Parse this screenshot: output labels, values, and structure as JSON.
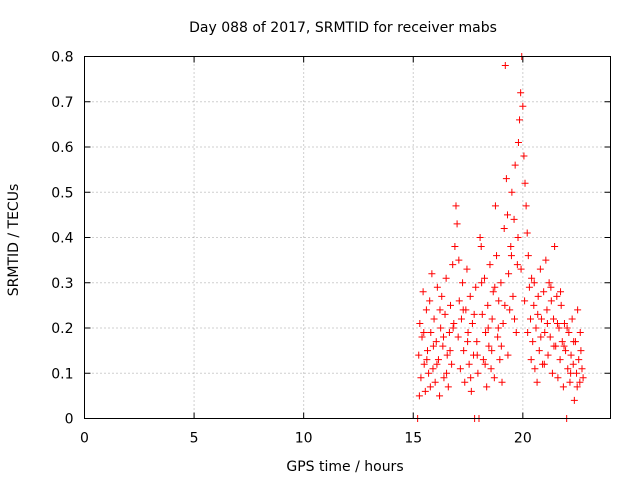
{
  "chart_data": {
    "type": "scatter",
    "title": "Day 088 of 2017, SRMTID for receiver mabs",
    "xlabel": "GPS time / hours",
    "ylabel": "SRMTID / TECUs",
    "xlim": [
      0,
      24
    ],
    "ylim": [
      0,
      0.8
    ],
    "x_ticks": [
      0,
      5,
      10,
      15,
      20
    ],
    "x_tick_labels": [
      "0",
      "5",
      "10",
      "15",
      "20"
    ],
    "y_ticks": [
      0,
      0.1,
      0.2,
      0.3,
      0.4,
      0.5,
      0.6,
      0.7,
      0.8
    ],
    "y_tick_labels": [
      "0",
      "0.1",
      "0.2",
      "0.3",
      "0.4",
      "0.5",
      "0.6",
      "0.7",
      "0.8"
    ],
    "grid": true,
    "marker": "+",
    "marker_color": "#ff0000",
    "series": [
      {
        "name": "SRMTID",
        "points": [
          [
            15.2,
            0.0
          ],
          [
            15.25,
            0.14
          ],
          [
            15.3,
            0.21
          ],
          [
            15.35,
            0.09
          ],
          [
            15.4,
            0.18
          ],
          [
            15.45,
            0.28
          ],
          [
            15.5,
            0.12
          ],
          [
            15.55,
            0.06
          ],
          [
            15.6,
            0.24
          ],
          [
            15.65,
            0.15
          ],
          [
            15.7,
            0.1
          ],
          [
            15.75,
            0.26
          ],
          [
            15.8,
            0.19
          ],
          [
            15.85,
            0.32
          ],
          [
            15.9,
            0.11
          ],
          [
            15.95,
            0.22
          ],
          [
            16.0,
            0.08
          ],
          [
            16.05,
            0.17
          ],
          [
            16.1,
            0.29
          ],
          [
            16.15,
            0.13
          ],
          [
            16.2,
            0.05
          ],
          [
            16.25,
            0.2
          ],
          [
            16.3,
            0.27
          ],
          [
            16.35,
            0.16
          ],
          [
            16.4,
            0.09
          ],
          [
            16.45,
            0.23
          ],
          [
            16.5,
            0.31
          ],
          [
            16.55,
            0.14
          ],
          [
            16.6,
            0.07
          ],
          [
            16.65,
            0.19
          ],
          [
            16.7,
            0.25
          ],
          [
            16.75,
            0.12
          ],
          [
            16.8,
            0.34
          ],
          [
            16.85,
            0.21
          ],
          [
            16.9,
            0.38
          ],
          [
            16.95,
            0.47
          ],
          [
            17.0,
            0.43
          ],
          [
            17.05,
            0.18
          ],
          [
            17.1,
            0.26
          ],
          [
            17.15,
            0.11
          ],
          [
            17.2,
            0.22
          ],
          [
            17.25,
            0.3
          ],
          [
            17.3,
            0.15
          ],
          [
            17.35,
            0.08
          ],
          [
            17.4,
            0.24
          ],
          [
            17.45,
            0.33
          ],
          [
            17.5,
            0.19
          ],
          [
            17.55,
            0.12
          ],
          [
            17.6,
            0.27
          ],
          [
            17.65,
            0.06
          ],
          [
            17.7,
            0.21
          ],
          [
            17.75,
            0.14
          ],
          [
            17.8,
            0.0
          ],
          [
            17.85,
            0.29
          ],
          [
            17.9,
            0.17
          ],
          [
            17.95,
            0.1
          ],
          [
            18.0,
            0.0
          ],
          [
            18.05,
            0.4
          ],
          [
            18.1,
            0.38
          ],
          [
            18.15,
            0.23
          ],
          [
            18.2,
            0.13
          ],
          [
            18.25,
            0.31
          ],
          [
            18.3,
            0.19
          ],
          [
            18.35,
            0.07
          ],
          [
            18.4,
            0.25
          ],
          [
            18.45,
            0.16
          ],
          [
            18.5,
            0.34
          ],
          [
            18.55,
            0.11
          ],
          [
            18.6,
            0.22
          ],
          [
            18.65,
            0.28
          ],
          [
            18.7,
            0.09
          ],
          [
            18.75,
            0.47
          ],
          [
            18.8,
            0.36
          ],
          [
            18.85,
            0.18
          ],
          [
            18.9,
            0.26
          ],
          [
            18.95,
            0.13
          ],
          [
            19.0,
            0.3
          ],
          [
            19.05,
            0.08
          ],
          [
            19.1,
            0.21
          ],
          [
            19.15,
            0.42
          ],
          [
            19.2,
            0.78
          ],
          [
            19.25,
            0.53
          ],
          [
            19.3,
            0.45
          ],
          [
            19.35,
            0.32
          ],
          [
            19.4,
            0.24
          ],
          [
            19.45,
            0.38
          ],
          [
            19.5,
            0.5
          ],
          [
            19.55,
            0.27
          ],
          [
            19.6,
            0.44
          ],
          [
            19.65,
            0.56
          ],
          [
            19.7,
            0.19
          ],
          [
            19.75,
            0.34
          ],
          [
            19.8,
            0.61
          ],
          [
            19.85,
            0.66
          ],
          [
            19.9,
            0.72
          ],
          [
            19.95,
            0.8
          ],
          [
            20.0,
            0.69
          ],
          [
            20.05,
            0.58
          ],
          [
            20.1,
            0.52
          ],
          [
            20.15,
            0.47
          ],
          [
            20.2,
            0.41
          ],
          [
            20.25,
            0.36
          ],
          [
            20.3,
            0.29
          ],
          [
            20.35,
            0.22
          ],
          [
            20.4,
            0.31
          ],
          [
            20.45,
            0.17
          ],
          [
            20.5,
            0.25
          ],
          [
            20.55,
            0.11
          ],
          [
            20.6,
            0.2
          ],
          [
            20.65,
            0.08
          ],
          [
            20.7,
            0.27
          ],
          [
            20.75,
            0.15
          ],
          [
            20.8,
            0.33
          ],
          [
            20.85,
            0.22
          ],
          [
            20.9,
            0.12
          ],
          [
            20.95,
            0.28
          ],
          [
            21.0,
            0.19
          ],
          [
            21.05,
            0.35
          ],
          [
            21.1,
            0.24
          ],
          [
            21.15,
            0.14
          ],
          [
            21.2,
            0.3
          ],
          [
            21.25,
            0.18
          ],
          [
            21.3,
            0.26
          ],
          [
            21.35,
            0.1
          ],
          [
            21.4,
            0.22
          ],
          [
            21.45,
            0.38
          ],
          [
            21.5,
            0.16
          ],
          [
            21.55,
            0.27
          ],
          [
            21.6,
            0.09
          ],
          [
            21.65,
            0.2
          ],
          [
            21.7,
            0.13
          ],
          [
            21.75,
            0.25
          ],
          [
            21.8,
            0.17
          ],
          [
            21.85,
            0.07
          ],
          [
            21.9,
            0.21
          ],
          [
            21.95,
            0.15
          ],
          [
            22.0,
            0.0
          ],
          [
            22.05,
            0.11
          ],
          [
            22.1,
            0.19
          ],
          [
            22.15,
            0.08
          ],
          [
            22.2,
            0.14
          ],
          [
            22.25,
            0.22
          ],
          [
            22.3,
            0.12
          ],
          [
            22.35,
            0.04
          ],
          [
            22.4,
            0.17
          ],
          [
            22.45,
            0.1
          ],
          [
            22.5,
            0.24
          ],
          [
            22.55,
            0.13
          ],
          [
            22.6,
            0.08
          ],
          [
            22.65,
            0.15
          ],
          [
            15.28,
            0.05
          ],
          [
            15.48,
            0.19
          ],
          [
            15.62,
            0.13
          ],
          [
            15.78,
            0.07
          ],
          [
            15.92,
            0.16
          ],
          [
            16.08,
            0.12
          ],
          [
            16.22,
            0.24
          ],
          [
            16.38,
            0.18
          ],
          [
            16.52,
            0.1
          ],
          [
            16.68,
            0.15
          ],
          [
            16.82,
            0.2
          ],
          [
            17.08,
            0.35
          ],
          [
            17.28,
            0.24
          ],
          [
            17.48,
            0.17
          ],
          [
            17.62,
            0.09
          ],
          [
            17.78,
            0.23
          ],
          [
            17.92,
            0.14
          ],
          [
            18.12,
            0.3
          ],
          [
            18.28,
            0.12
          ],
          [
            18.42,
            0.2
          ],
          [
            18.58,
            0.15
          ],
          [
            18.72,
            0.29
          ],
          [
            18.88,
            0.2
          ],
          [
            19.02,
            0.16
          ],
          [
            19.18,
            0.25
          ],
          [
            19.32,
            0.14
          ],
          [
            19.48,
            0.36
          ],
          [
            19.62,
            0.22
          ],
          [
            19.78,
            0.4
          ],
          [
            19.92,
            0.33
          ],
          [
            20.08,
            0.26
          ],
          [
            20.22,
            0.19
          ],
          [
            20.38,
            0.13
          ],
          [
            20.52,
            0.3
          ],
          [
            20.68,
            0.23
          ],
          [
            20.82,
            0.18
          ],
          [
            20.98,
            0.12
          ],
          [
            21.12,
            0.21
          ],
          [
            21.28,
            0.29
          ],
          [
            21.42,
            0.16
          ],
          [
            21.58,
            0.21
          ],
          [
            21.72,
            0.28
          ],
          [
            21.88,
            0.16
          ],
          [
            22.02,
            0.2
          ],
          [
            22.18,
            0.1
          ],
          [
            22.32,
            0.17
          ],
          [
            22.48,
            0.07
          ],
          [
            22.62,
            0.19
          ],
          [
            22.7,
            0.11
          ],
          [
            22.75,
            0.09
          ]
        ]
      }
    ]
  }
}
